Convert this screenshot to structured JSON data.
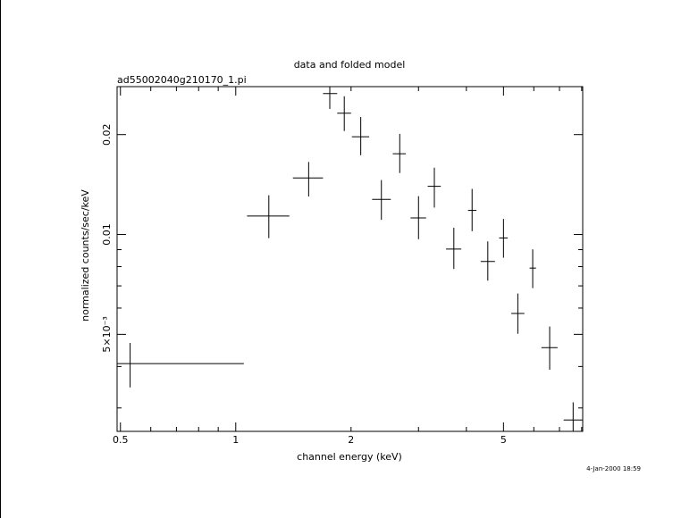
{
  "chart_data": {
    "type": "scatter",
    "title": "data and folded model",
    "subtitle": "ad55002040g210170_1.pi",
    "xlabel": "channel energy (keV)",
    "ylabel": "normalized counts/sec/keV",
    "timestamp": "4-Jan-2000 18:59",
    "x_scale": "log",
    "y_scale": "log",
    "xlim": [
      0.49,
      8.05
    ],
    "ylim": [
      0.00255,
      0.0279
    ],
    "x_ticks": [
      {
        "value": 0.5,
        "label": "0.5"
      },
      {
        "value": 1,
        "label": "1"
      },
      {
        "value": 2,
        "label": "2"
      },
      {
        "value": 5,
        "label": "5"
      }
    ],
    "y_ticks": [
      {
        "value": 0.005,
        "label": "5×10⁻³"
      },
      {
        "value": 0.01,
        "label": "0.01"
      },
      {
        "value": 0.02,
        "label": "0.02"
      }
    ],
    "grid": false,
    "series": [
      {
        "points": [
          {
            "x": 0.53,
            "xlo": 0.49,
            "xhi": 1.05,
            "y": 0.00408,
            "ylo": 0.00346,
            "yhi": 0.00471
          },
          {
            "x": 1.22,
            "xlo": 1.07,
            "xhi": 1.38,
            "y": 0.01137,
            "ylo": 0.00975,
            "yhi": 0.01313
          },
          {
            "x": 1.55,
            "xlo": 1.41,
            "xhi": 1.69,
            "y": 0.0148,
            "ylo": 0.01302,
            "yhi": 0.01654
          },
          {
            "x": 1.76,
            "xlo": 1.69,
            "xhi": 1.84,
            "y": 0.0266,
            "ylo": 0.0239,
            "yhi": 0.0279
          },
          {
            "x": 1.92,
            "xlo": 1.84,
            "xhi": 2.0,
            "y": 0.0232,
            "ylo": 0.0205,
            "yhi": 0.0261
          },
          {
            "x": 2.12,
            "xlo": 2.01,
            "xhi": 2.23,
            "y": 0.0197,
            "ylo": 0.01733,
            "yhi": 0.0226
          },
          {
            "x": 2.4,
            "xlo": 2.27,
            "xhi": 2.54,
            "y": 0.01276,
            "ylo": 0.01107,
            "yhi": 0.01459
          },
          {
            "x": 2.68,
            "xlo": 2.57,
            "xhi": 2.78,
            "y": 0.01751,
            "ylo": 0.01532,
            "yhi": 0.0201
          },
          {
            "x": 3.0,
            "xlo": 2.86,
            "xhi": 3.14,
            "y": 0.01122,
            "ylo": 0.00968,
            "yhi": 0.01305
          },
          {
            "x": 3.3,
            "xlo": 3.17,
            "xhi": 3.43,
            "y": 0.01397,
            "ylo": 0.01205,
            "yhi": 0.0159
          },
          {
            "x": 3.71,
            "xlo": 3.54,
            "xhi": 3.88,
            "y": 0.00904,
            "ylo": 0.00787,
            "yhi": 0.01048
          },
          {
            "x": 4.14,
            "xlo": 4.04,
            "xhi": 4.25,
            "y": 0.01182,
            "ylo": 0.01023,
            "yhi": 0.01372
          },
          {
            "x": 4.55,
            "xlo": 4.36,
            "xhi": 4.75,
            "y": 0.00829,
            "ylo": 0.00726,
            "yhi": 0.00953
          },
          {
            "x": 5.0,
            "xlo": 4.87,
            "xhi": 5.13,
            "y": 0.00976,
            "ylo": 0.00851,
            "yhi": 0.01114
          },
          {
            "x": 5.45,
            "xlo": 5.24,
            "xhi": 5.67,
            "y": 0.00578,
            "ylo": 0.00502,
            "yhi": 0.00664
          },
          {
            "x": 5.96,
            "xlo": 5.85,
            "xhi": 6.08,
            "y": 0.00792,
            "ylo": 0.00689,
            "yhi": 0.00902
          },
          {
            "x": 6.6,
            "xlo": 6.28,
            "xhi": 6.92,
            "y": 0.00456,
            "ylo": 0.00391,
            "yhi": 0.00528
          },
          {
            "x": 7.6,
            "xlo": 7.18,
            "xhi": 8.05,
            "y": 0.00276,
            "ylo": 0.00255,
            "yhi": 0.00312
          }
        ]
      }
    ]
  }
}
